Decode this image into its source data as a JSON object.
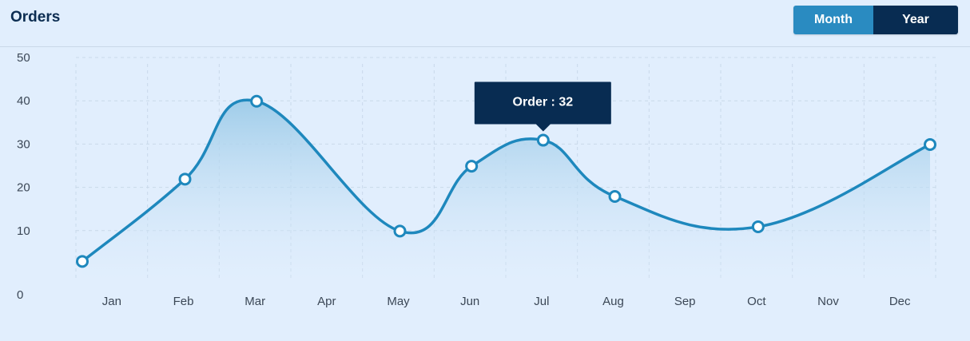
{
  "header": {
    "title": "Orders"
  },
  "toggle": {
    "month_label": "Month",
    "year_label": "Year",
    "active": "Year"
  },
  "colors": {
    "line": "#1e88bd",
    "area_top": "#9ccbe8",
    "area_bottom": "#e1eefd",
    "tooltip_bg": "#082c52",
    "marker_fill": "#ffffff"
  },
  "tooltip": {
    "text": "Order : 32",
    "category": "Jul"
  },
  "chart_data": {
    "type": "area",
    "categories": [
      "Jan",
      "Feb",
      "Mar",
      "Apr",
      "May",
      "Jun",
      "Jul",
      "Aug",
      "Sep",
      "Oct",
      "Nov",
      "Dec"
    ],
    "series": [
      {
        "points": [
          {
            "x": "Jan",
            "y": 4
          },
          {
            "x": "Feb",
            "y": 23
          },
          {
            "x": "Mar",
            "y": 41
          },
          {
            "x": "May",
            "y": 11
          },
          {
            "x": "Jun",
            "y": 26
          },
          {
            "x": "Jul",
            "y": 32
          },
          {
            "x": "Aug",
            "y": 19
          },
          {
            "x": "Oct",
            "y": 12
          },
          {
            "x": "Dec",
            "y": 31
          }
        ]
      }
    ],
    "yticks": [
      0,
      10,
      20,
      30,
      40,
      50
    ],
    "ylim": [
      0,
      50
    ],
    "grid": true,
    "title": "Orders"
  }
}
